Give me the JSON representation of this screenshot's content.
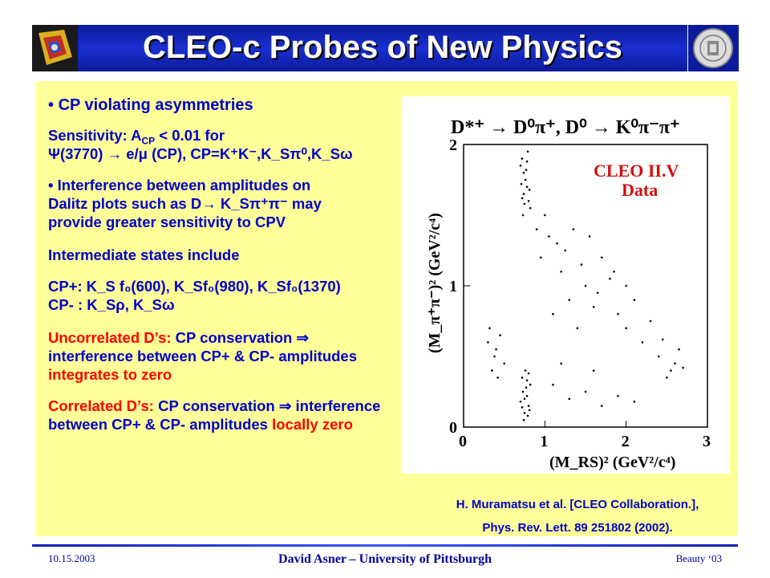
{
  "title": "CLEO-c Probes of New Physics",
  "logo_left_name": "cleo-detector-logo",
  "logo_right_name": "university-seal",
  "content": {
    "heading": "CP violating asymmetries",
    "sens_line1": "Sensitivity: A",
    "sens_sub": "CP",
    "sens_line1_end": " < 0.01 for",
    "sens_line2": "Ψ(3770) → e/μ (CP), CP=K⁺K⁻,K_Sπ⁰,K_Sω",
    "interference_line1": "Interference between amplitudes on",
    "interference_line2": "Dalitz plots such as D→ K_Sπ⁺π⁻ may",
    "interference_line3": "provide greater sensitivity to CPV",
    "intermediate": "Intermediate states include",
    "cp_plus": "CP+: K_S f₀(600), K_Sf₀(980), K_Sf₀(1370)",
    "cp_minus": "CP- : K_Sρ, K_Sω",
    "uncorr_lead": "Uncorrelated D’s:",
    "uncorr_text": " CP conservation ⇒ interference between CP+ & CP- amplitudes",
    "uncorr_tail": " integrates to zero",
    "corr_lead": "Correlated D’s:",
    "corr_text": " CP conservation ⇒ interference between CP+ & CP- amplitudes",
    "corr_tail": " locally zero"
  },
  "plot": {
    "decay": "D*⁺ → D⁰π⁺, D⁰ → K⁰π⁻π⁺",
    "label_line1": "CLEO II.V",
    "label_line2": "Data",
    "ylabel": "(M_π⁺π⁻)² (GeV²/c⁴)",
    "xlabel": "(M_RS)² (GeV²/c⁴)",
    "xticks": [
      "0",
      "1",
      "2",
      "3"
    ],
    "yticks": [
      "0",
      "1",
      "2"
    ]
  },
  "chart_data": {
    "type": "scatter",
    "title": "D*⁺ → D⁰π⁺, D⁰ → K⁰π⁻π⁺",
    "xlabel": "(M_RS)² (GeV²/c⁴)",
    "ylabel": "(M_π⁺π⁻)² (GeV²/c⁴)",
    "xlim": [
      0,
      3
    ],
    "ylim": [
      0,
      2
    ],
    "legend": "CLEO II.V Data",
    "points": [
      [
        0.75,
        0.1
      ],
      [
        0.78,
        0.22
      ],
      [
        0.72,
        0.35
      ],
      [
        0.8,
        0.15
      ],
      [
        0.77,
        0.28
      ],
      [
        0.74,
        0.05
      ],
      [
        0.82,
        0.3
      ],
      [
        0.7,
        0.18
      ],
      [
        0.76,
        0.4
      ],
      [
        0.79,
        0.08
      ],
      [
        0.73,
        0.25
      ],
      [
        0.81,
        0.12
      ],
      [
        0.78,
        0.33
      ],
      [
        0.75,
        0.2
      ],
      [
        0.72,
        0.14
      ],
      [
        0.8,
        0.38
      ],
      [
        0.74,
        1.8
      ],
      [
        0.78,
        1.7
      ],
      [
        0.72,
        1.9
      ],
      [
        0.8,
        1.6
      ],
      [
        0.76,
        1.75
      ],
      [
        0.7,
        1.85
      ],
      [
        0.82,
        1.55
      ],
      [
        0.74,
        1.65
      ],
      [
        0.79,
        1.95
      ],
      [
        0.73,
        1.5
      ],
      [
        0.77,
        1.82
      ],
      [
        0.71,
        1.72
      ],
      [
        0.81,
        1.68
      ],
      [
        0.75,
        1.58
      ],
      [
        0.78,
        1.88
      ],
      [
        0.72,
        1.62
      ],
      [
        0.3,
        0.6
      ],
      [
        0.4,
        0.55
      ],
      [
        0.35,
        0.4
      ],
      [
        0.45,
        0.65
      ],
      [
        0.5,
        0.45
      ],
      [
        0.32,
        0.7
      ],
      [
        0.42,
        0.35
      ],
      [
        0.38,
        0.5
      ],
      [
        1.1,
        0.8
      ],
      [
        1.3,
        0.9
      ],
      [
        1.5,
        1.0
      ],
      [
        1.2,
        1.1
      ],
      [
        1.4,
        0.7
      ],
      [
        1.6,
        0.85
      ],
      [
        1.25,
        1.25
      ],
      [
        1.45,
        1.15
      ],
      [
        1.7,
        1.2
      ],
      [
        1.55,
        1.35
      ],
      [
        1.35,
        1.4
      ],
      [
        1.15,
        1.3
      ],
      [
        1.8,
        1.05
      ],
      [
        1.65,
        0.95
      ],
      [
        1.9,
        0.8
      ],
      [
        2.0,
        0.7
      ],
      [
        2.2,
        0.6
      ],
      [
        2.4,
        0.5
      ],
      [
        2.6,
        0.45
      ],
      [
        2.55,
        0.4
      ],
      [
        2.65,
        0.55
      ],
      [
        2.5,
        0.35
      ],
      [
        2.45,
        0.62
      ],
      [
        2.7,
        0.42
      ],
      [
        1.1,
        0.3
      ],
      [
        1.3,
        0.2
      ],
      [
        1.5,
        0.25
      ],
      [
        1.7,
        0.15
      ],
      [
        1.9,
        0.22
      ],
      [
        2.1,
        0.18
      ],
      [
        1.2,
        0.45
      ],
      [
        1.6,
        0.4
      ],
      [
        2.0,
        1.0
      ],
      [
        2.1,
        0.9
      ],
      [
        2.3,
        0.75
      ],
      [
        1.85,
        1.1
      ],
      [
        0.95,
        1.2
      ],
      [
        1.0,
        1.5
      ],
      [
        0.9,
        1.4
      ],
      [
        1.05,
        1.35
      ]
    ]
  },
  "citation": {
    "line1": "H. Muramatsu et al. [CLEO Collaboration.],",
    "line2": "Phys. Rev. Lett. 89 251802 (2002)."
  },
  "footer": {
    "date": "10.15.2003",
    "author": "David Asner – University of Pittsburgh",
    "conf": "Beauty ‘03"
  }
}
